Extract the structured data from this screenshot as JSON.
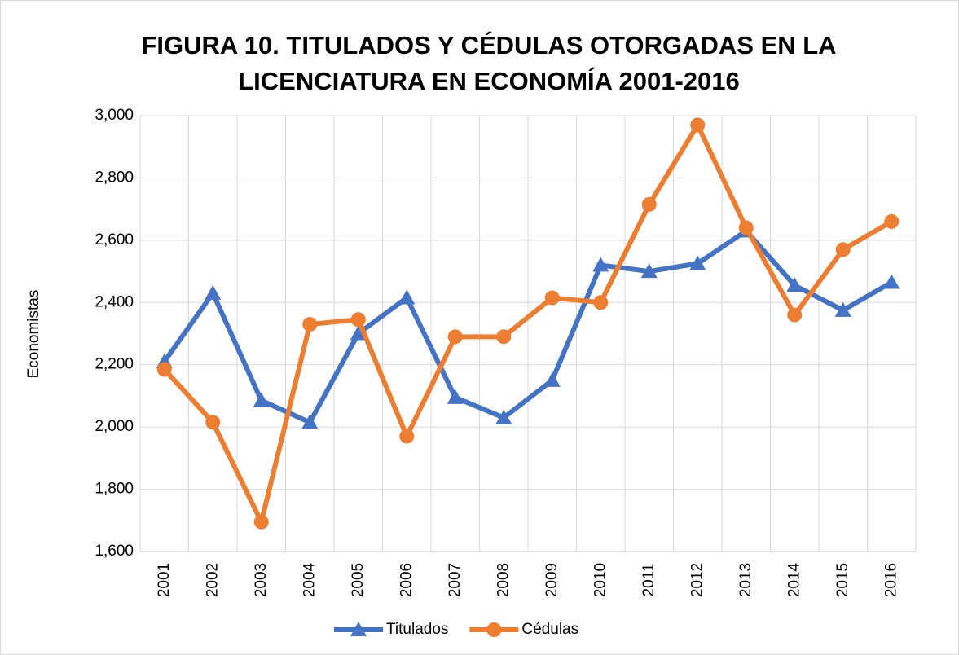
{
  "chart_data": {
    "type": "line",
    "title": "FIGURA 10. TITULADOS Y CÉDULAS OTORGADAS EN LA LICENCIATURA EN ECONOMÍA 2001-2016",
    "y_label": "Economistas",
    "categories": [
      "2001",
      "2002",
      "2003",
      "2004",
      "2005",
      "2006",
      "2007",
      "2008",
      "2009",
      "2010",
      "2011",
      "2012",
      "2013",
      "2014",
      "2015",
      "2016"
    ],
    "series": [
      {
        "name": "Titulados",
        "color": "#4472c4",
        "marker": "triangle",
        "values": [
          2210,
          2430,
          2085,
          2015,
          2300,
          2415,
          2095,
          2030,
          2150,
          2520,
          2500,
          2525,
          2630,
          2455,
          2375,
          2465
        ]
      },
      {
        "name": "Cédulas",
        "color": "#ed7d31",
        "marker": "circle",
        "values": [
          2185,
          2015,
          1695,
          2330,
          2345,
          1970,
          2290,
          2290,
          2415,
          2400,
          2715,
          2970,
          2640,
          2360,
          2570,
          2660
        ]
      }
    ],
    "ylim": [
      1600,
      3000
    ],
    "yticks": [
      {
        "value": 1600,
        "label": "1,600"
      },
      {
        "value": 1800,
        "label": "1,800"
      },
      {
        "value": 2000,
        "label": "2,000"
      },
      {
        "value": 2200,
        "label": "2,200"
      },
      {
        "value": 2400,
        "label": "2,400"
      },
      {
        "value": 2600,
        "label": "2,600"
      },
      {
        "value": 2800,
        "label": "2,800"
      },
      {
        "value": 3000,
        "label": "3,000"
      }
    ],
    "grid": true,
    "legend": "bottom"
  }
}
